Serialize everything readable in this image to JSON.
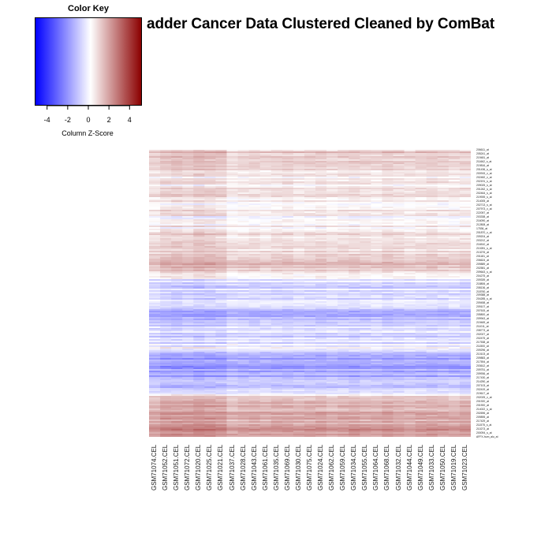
{
  "title": "adder Cancer Data Clustered Cleaned by ComBat",
  "color_key": {
    "title": "Color Key",
    "xlabel": "Column Z-Score",
    "ticks": [
      -4,
      -2,
      0,
      2,
      4
    ],
    "tick_labels": [
      "-4",
      "-2",
      "0",
      "2",
      "4"
    ],
    "range": [
      -5.2,
      5.2
    ],
    "low_color": "#0000ff",
    "mid_color": "#ffffff",
    "high_color": "#8b0000"
  },
  "chart_data": {
    "type": "heatmap",
    "title": "adder Cancer Data Clustered Cleaned by ComBat",
    "xlabel": "",
    "ylabel": "",
    "columns": [
      "GSM71074.CEL",
      "GSM71052.CEL",
      "GSM71051.CEL",
      "GSM71072.CEL",
      "GSM71020.CEL",
      "GSM71025.CEL",
      "GSM71021.CEL",
      "GSM71037.CEL",
      "GSM71028.CEL",
      "GSM71043.CEL",
      "GSM71061.CEL",
      "GSM71035.CEL",
      "GSM71069.CEL",
      "GSM71030.CEL",
      "GSM71075.CEL",
      "GSM71024.CEL",
      "GSM71062.CEL",
      "GSM71059.CEL",
      "GSM71034.CEL",
      "GSM71055.CEL",
      "GSM71064.CEL",
      "GSM71068.CEL",
      "GSM71032.CEL",
      "GSM71044.CEL",
      "GSM71049.CEL",
      "GSM71033.CEL",
      "GSM71050.CEL",
      "GSM71019.CEL",
      "GSM71023.CEL"
    ],
    "row_labels": [
      "206611_at",
      "205241_at",
      "219481_at",
      "211662_s_at",
      "219816_at",
      "201436_s_at",
      "200915_x_at",
      "202482_x_at",
      "202191_s_at",
      "209025_s_at",
      "201262_s_at",
      "202464_s_at",
      "219939_s_at",
      "214005_at",
      "202713_s_at",
      "207973_x_at",
      "222057_at",
      "203338_at",
      "216090_at",
      "212808_at",
      "17536_at",
      "201870_x_at",
      "209204_at",
      "203212_at",
      "216510_at",
      "210281_s_at",
      "213276_at",
      "201181_at",
      "206624_at",
      "209889_at",
      "202581_at",
      "209643_s_at",
      "204275_at",
      "209339_at",
      "218806_at",
      "208136_at",
      "218760_at",
      "209388_at",
      "204285_s_at",
      "209458_at",
      "209107_at",
      "207615_at",
      "205800_at",
      "209943_at",
      "219469_at",
      "211011_at",
      "208773_at",
      "202027_at",
      "202475_at",
      "217538_at",
      "211500_at",
      "209296_at",
      "210103_at",
      "209883_at",
      "217594_at",
      "203612_at",
      "209751_at",
      "209936_at",
      "217430_at",
      "214250_at",
      "207103_at",
      "202419_at",
      "219617_at",
      "202025_x_at",
      "201920_at",
      "201900_at",
      "214022_s_at",
      "202696_at",
      "209895_at",
      "217429_at",
      "211575_s_at",
      "210273_at",
      "200094_s_at",
      "AFFX-hum_alu_at"
    ],
    "row_bands": [
      [
        0.0,
        1.2
      ],
      [
        0.03,
        0.9
      ],
      [
        0.06,
        0.7
      ],
      [
        0.09,
        0.4
      ],
      [
        0.12,
        0.3
      ],
      [
        0.15,
        0.5
      ],
      [
        0.18,
        0.2
      ],
      [
        0.21,
        0.3
      ],
      [
        0.24,
        0.1
      ],
      [
        0.27,
        0.3
      ],
      [
        0.3,
        0.6
      ],
      [
        0.33,
        0.9
      ],
      [
        0.36,
        0.5
      ],
      [
        0.39,
        1.3
      ],
      [
        0.42,
        1.0
      ],
      [
        0.45,
        -0.4
      ],
      [
        0.48,
        -0.8
      ],
      [
        0.51,
        -0.6
      ],
      [
        0.54,
        -0.9
      ],
      [
        0.57,
        -1.4
      ],
      [
        0.6,
        -1.2
      ],
      [
        0.63,
        -0.5
      ],
      [
        0.66,
        -0.9
      ],
      [
        0.69,
        -0.2
      ],
      [
        0.72,
        -1.6
      ],
      [
        0.75,
        -1.9
      ],
      [
        0.78,
        -1.7
      ],
      [
        0.81,
        -1.5
      ],
      [
        0.84,
        -1.0
      ],
      [
        0.87,
        1.3
      ],
      [
        0.9,
        1.6
      ],
      [
        0.93,
        1.4
      ],
      [
        0.96,
        1.9
      ],
      [
        1.0,
        2.2
      ]
    ],
    "column_offsets": [
      0.0,
      0.3,
      0.4,
      0.3,
      0.5,
      0.4,
      0.3,
      -0.2,
      -0.1,
      0.0,
      -0.1,
      0.0,
      0.1,
      -0.1,
      0.0,
      0.1,
      -0.1,
      0.0,
      0.1,
      0.0,
      -0.1,
      0.1,
      0.0,
      -0.1,
      0.0,
      0.1,
      0.0,
      -0.1,
      0.0
    ],
    "legend_position": "top-left",
    "grid": false
  }
}
